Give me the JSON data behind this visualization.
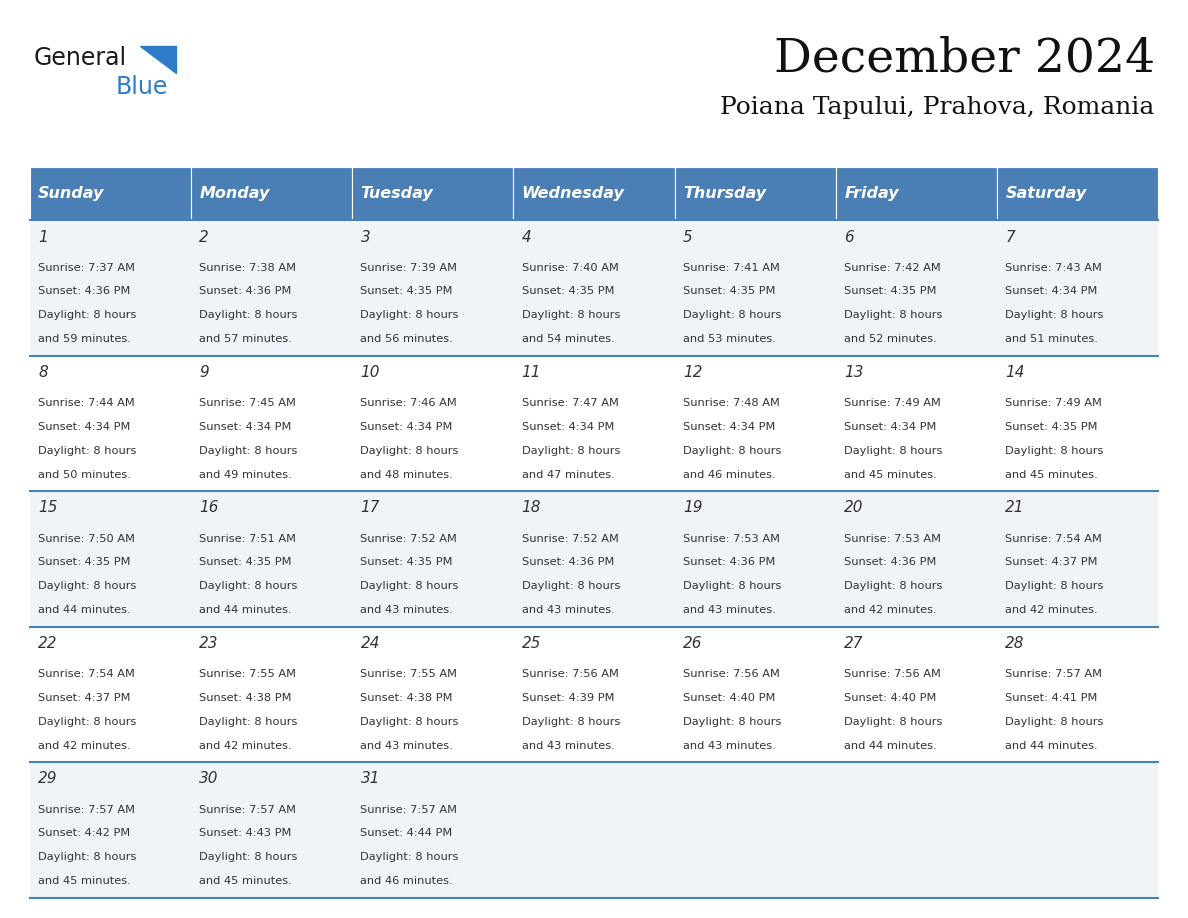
{
  "title": "December 2024",
  "subtitle": "Poiana Tapului, Prahova, Romania",
  "header_bg": "#4a7fb5",
  "header_text_color": "#ffffff",
  "days_of_week": [
    "Sunday",
    "Monday",
    "Tuesday",
    "Wednesday",
    "Thursday",
    "Friday",
    "Saturday"
  ],
  "row_bg_odd": "#f0f4f8",
  "row_bg_even": "#ffffff",
  "divider_color": "#4a7fb5",
  "text_color": "#333333",
  "logo_general_color": "#1a1a1a",
  "logo_blue_color": "#2e7dc9",
  "logo_triangle_color": "#2e7dc9",
  "calendar_data": [
    [
      {
        "day": 1,
        "sunrise": "7:37 AM",
        "sunset": "4:36 PM",
        "daylight_hours": 8,
        "daylight_minutes": 59
      },
      {
        "day": 2,
        "sunrise": "7:38 AM",
        "sunset": "4:36 PM",
        "daylight_hours": 8,
        "daylight_minutes": 57
      },
      {
        "day": 3,
        "sunrise": "7:39 AM",
        "sunset": "4:35 PM",
        "daylight_hours": 8,
        "daylight_minutes": 56
      },
      {
        "day": 4,
        "sunrise": "7:40 AM",
        "sunset": "4:35 PM",
        "daylight_hours": 8,
        "daylight_minutes": 54
      },
      {
        "day": 5,
        "sunrise": "7:41 AM",
        "sunset": "4:35 PM",
        "daylight_hours": 8,
        "daylight_minutes": 53
      },
      {
        "day": 6,
        "sunrise": "7:42 AM",
        "sunset": "4:35 PM",
        "daylight_hours": 8,
        "daylight_minutes": 52
      },
      {
        "day": 7,
        "sunrise": "7:43 AM",
        "sunset": "4:34 PM",
        "daylight_hours": 8,
        "daylight_minutes": 51
      }
    ],
    [
      {
        "day": 8,
        "sunrise": "7:44 AM",
        "sunset": "4:34 PM",
        "daylight_hours": 8,
        "daylight_minutes": 50
      },
      {
        "day": 9,
        "sunrise": "7:45 AM",
        "sunset": "4:34 PM",
        "daylight_hours": 8,
        "daylight_minutes": 49
      },
      {
        "day": 10,
        "sunrise": "7:46 AM",
        "sunset": "4:34 PM",
        "daylight_hours": 8,
        "daylight_minutes": 48
      },
      {
        "day": 11,
        "sunrise": "7:47 AM",
        "sunset": "4:34 PM",
        "daylight_hours": 8,
        "daylight_minutes": 47
      },
      {
        "day": 12,
        "sunrise": "7:48 AM",
        "sunset": "4:34 PM",
        "daylight_hours": 8,
        "daylight_minutes": 46
      },
      {
        "day": 13,
        "sunrise": "7:49 AM",
        "sunset": "4:34 PM",
        "daylight_hours": 8,
        "daylight_minutes": 45
      },
      {
        "day": 14,
        "sunrise": "7:49 AM",
        "sunset": "4:35 PM",
        "daylight_hours": 8,
        "daylight_minutes": 45
      }
    ],
    [
      {
        "day": 15,
        "sunrise": "7:50 AM",
        "sunset": "4:35 PM",
        "daylight_hours": 8,
        "daylight_minutes": 44
      },
      {
        "day": 16,
        "sunrise": "7:51 AM",
        "sunset": "4:35 PM",
        "daylight_hours": 8,
        "daylight_minutes": 44
      },
      {
        "day": 17,
        "sunrise": "7:52 AM",
        "sunset": "4:35 PM",
        "daylight_hours": 8,
        "daylight_minutes": 43
      },
      {
        "day": 18,
        "sunrise": "7:52 AM",
        "sunset": "4:36 PM",
        "daylight_hours": 8,
        "daylight_minutes": 43
      },
      {
        "day": 19,
        "sunrise": "7:53 AM",
        "sunset": "4:36 PM",
        "daylight_hours": 8,
        "daylight_minutes": 43
      },
      {
        "day": 20,
        "sunrise": "7:53 AM",
        "sunset": "4:36 PM",
        "daylight_hours": 8,
        "daylight_minutes": 42
      },
      {
        "day": 21,
        "sunrise": "7:54 AM",
        "sunset": "4:37 PM",
        "daylight_hours": 8,
        "daylight_minutes": 42
      }
    ],
    [
      {
        "day": 22,
        "sunrise": "7:54 AM",
        "sunset": "4:37 PM",
        "daylight_hours": 8,
        "daylight_minutes": 42
      },
      {
        "day": 23,
        "sunrise": "7:55 AM",
        "sunset": "4:38 PM",
        "daylight_hours": 8,
        "daylight_minutes": 42
      },
      {
        "day": 24,
        "sunrise": "7:55 AM",
        "sunset": "4:38 PM",
        "daylight_hours": 8,
        "daylight_minutes": 43
      },
      {
        "day": 25,
        "sunrise": "7:56 AM",
        "sunset": "4:39 PM",
        "daylight_hours": 8,
        "daylight_minutes": 43
      },
      {
        "day": 26,
        "sunrise": "7:56 AM",
        "sunset": "4:40 PM",
        "daylight_hours": 8,
        "daylight_minutes": 43
      },
      {
        "day": 27,
        "sunrise": "7:56 AM",
        "sunset": "4:40 PM",
        "daylight_hours": 8,
        "daylight_minutes": 44
      },
      {
        "day": 28,
        "sunrise": "7:57 AM",
        "sunset": "4:41 PM",
        "daylight_hours": 8,
        "daylight_minutes": 44
      }
    ],
    [
      {
        "day": 29,
        "sunrise": "7:57 AM",
        "sunset": "4:42 PM",
        "daylight_hours": 8,
        "daylight_minutes": 45
      },
      {
        "day": 30,
        "sunrise": "7:57 AM",
        "sunset": "4:43 PM",
        "daylight_hours": 8,
        "daylight_minutes": 45
      },
      {
        "day": 31,
        "sunrise": "7:57 AM",
        "sunset": "4:44 PM",
        "daylight_hours": 8,
        "daylight_minutes": 46
      },
      null,
      null,
      null,
      null
    ]
  ]
}
